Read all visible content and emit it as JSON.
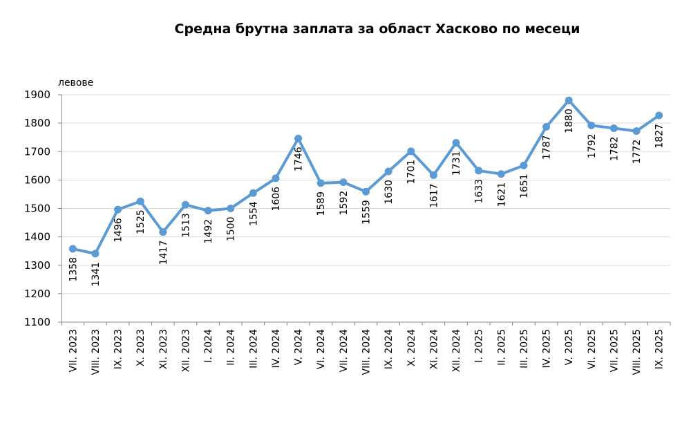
{
  "chart_data": {
    "type": "line",
    "title": "Средна брутна заплата за област Хасково по месеци",
    "ylabel": "левове",
    "xlabel": "",
    "ylim": [
      1100,
      1900
    ],
    "yticks": [
      1100,
      1200,
      1300,
      1400,
      1500,
      1600,
      1700,
      1800,
      1900
    ],
    "grid": true,
    "legend": "none",
    "line_color": "#5b9bd5",
    "categories": [
      "VII. 2023",
      "VIII. 2023",
      "IX. 2023",
      "X. 2023",
      "XI. 2023",
      "XII. 2023",
      "I. 2024",
      "II. 2024",
      "III. 2024",
      "IV. 2024",
      "V. 2024",
      "VI. 2024",
      "VII. 2024",
      "VIII. 2024",
      "IX. 2024",
      "X. 2024",
      "XI. 2024",
      "XII. 2024",
      "I. 2025",
      "II. 2025",
      "III. 2025",
      "IV. 2025",
      "V. 2025",
      "VI. 2025",
      "VII. 2025",
      "VIII. 2025",
      "IX. 2025"
    ],
    "values": [
      1358,
      1341,
      1496,
      1525,
      1417,
      1513,
      1492,
      1500,
      1554,
      1606,
      1746,
      1589,
      1592,
      1559,
      1630,
      1701,
      1617,
      1731,
      1633,
      1621,
      1651,
      1787,
      1880,
      1792,
      1782,
      1772,
      1827
    ],
    "value_labels": [
      "1358",
      "1341",
      "1496",
      "1525",
      "1417",
      "1513",
      "1492",
      "1500",
      "1554",
      "1606",
      "1746",
      "1589",
      "1592",
      "1559",
      "1630",
      "1701",
      "1617",
      "1731",
      "1633",
      "1621",
      "1651",
      "1787",
      "1880",
      "1792",
      "1782",
      "1772",
      "1827"
    ],
    "label_side": [
      "below",
      "below",
      "below",
      "below",
      "below",
      "below",
      "below",
      "below",
      "below",
      "below",
      "below",
      "below",
      "below",
      "below",
      "below",
      "below",
      "below",
      "below",
      "below",
      "below",
      "below",
      "below",
      "below",
      "below",
      "below",
      "below",
      "below"
    ]
  }
}
